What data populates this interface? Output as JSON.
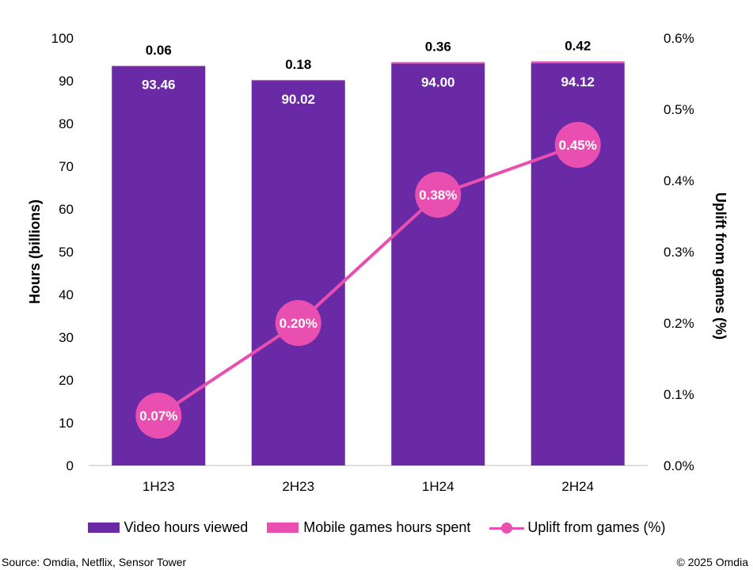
{
  "chart_data": {
    "type": "bar",
    "stacked": true,
    "categories": [
      "1H23",
      "2H23",
      "1H24",
      "2H24"
    ],
    "series": [
      {
        "name": "Video hours viewed",
        "type": "bar",
        "axis": "left",
        "color": "#6a2aa5",
        "values": [
          93.46,
          90.02,
          94.0,
          94.12
        ],
        "labels": [
          "93.46",
          "90.02",
          "94.00",
          "94.12"
        ]
      },
      {
        "name": "Mobile games hours spent",
        "type": "bar",
        "axis": "left",
        "color": "#e84fb0",
        "values": [
          0.06,
          0.18,
          0.36,
          0.42
        ],
        "labels": [
          "0.06",
          "0.18",
          "0.36",
          "0.42"
        ]
      },
      {
        "name": "Uplift from games (%)",
        "type": "line",
        "axis": "right",
        "color": "#e84fb0",
        "values": [
          0.07,
          0.2,
          0.38,
          0.45
        ],
        "labels": [
          "0.07%",
          "0.20%",
          "0.38%",
          "0.45%"
        ]
      }
    ],
    "y_left": {
      "label": "Hours (billions)",
      "min": 0,
      "max": 100,
      "ticks": [
        "0",
        "10",
        "20",
        "30",
        "40",
        "50",
        "60",
        "70",
        "80",
        "90",
        "100"
      ]
    },
    "y_right": {
      "label": "Uplift from games (%)",
      "min": 0,
      "max": 0.6,
      "ticks": [
        "0.0%",
        "0.1%",
        "0.2%",
        "0.3%",
        "0.4%",
        "0.5%",
        "0.6%"
      ]
    },
    "grid": false,
    "legend_position": "bottom"
  },
  "legend": {
    "video": "Video hours viewed",
    "games": "Mobile games hours spent",
    "uplift": "Uplift from games (%)"
  },
  "footer": {
    "source": "Source: Omdia, Netflix, Sensor Tower",
    "copyright": "© 2025 Omdia"
  }
}
